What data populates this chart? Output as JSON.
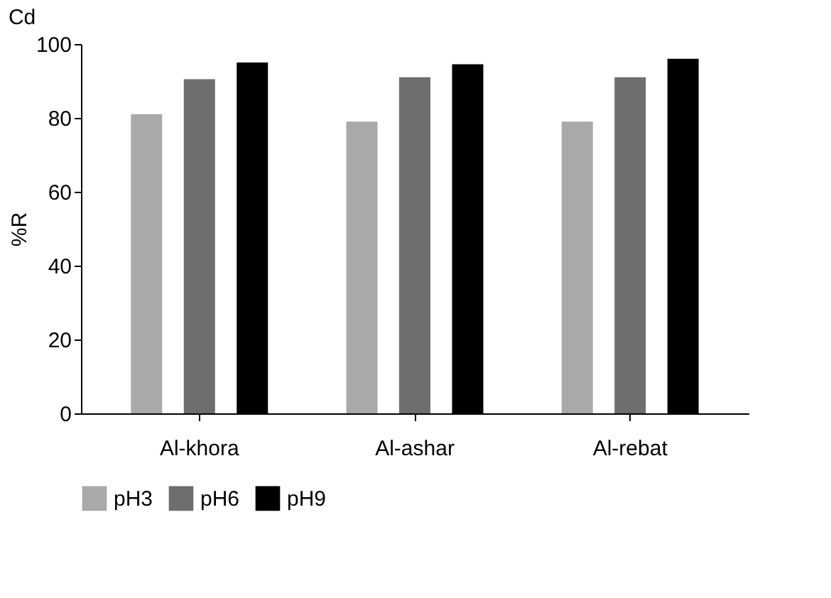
{
  "chart_data": {
    "type": "bar",
    "title": "Cd",
    "ylabel": "%R",
    "categories": [
      "Al-khora",
      "Al-ashar",
      "Al-rebat"
    ],
    "series": [
      {
        "name": "pH3",
        "color": "#a9a9a9",
        "values": [
          81,
          79,
          79
        ]
      },
      {
        "name": "pH6",
        "color": "#6e6e6e",
        "values": [
          90.5,
          91,
          91
        ]
      },
      {
        "name": "pH9",
        "color": "#000000",
        "values": [
          95,
          94.5,
          96
        ]
      }
    ],
    "ylim": [
      0,
      100
    ],
    "yticks": [
      0,
      20,
      40,
      60,
      80,
      100
    ],
    "grid": false,
    "legend": "bottom"
  }
}
